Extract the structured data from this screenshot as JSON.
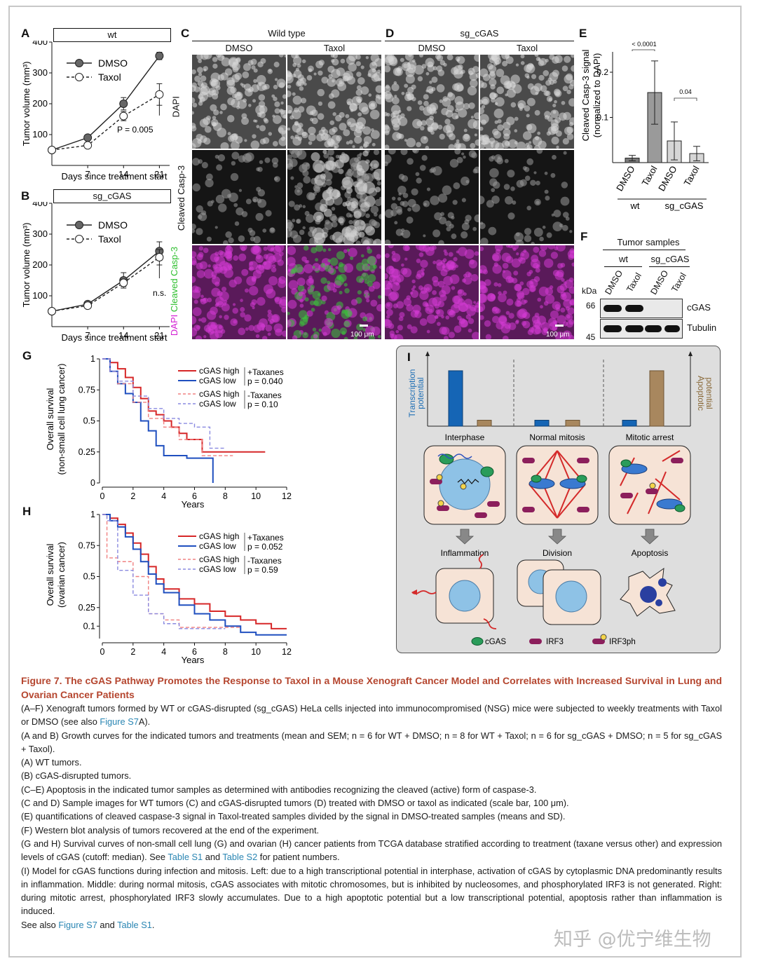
{
  "panels": {
    "A": {
      "label": "A",
      "header": "wt",
      "legend": [
        "DMSO",
        "Taxol"
      ],
      "pvalue": "P = 0.005",
      "ylabel": "Tumor volume (mm³)",
      "xlabel": "Days since treatment start"
    },
    "B": {
      "label": "B",
      "header": "sg_cGAS",
      "legend": [
        "DMSO",
        "Taxol"
      ],
      "pvalue": "n.s.",
      "ylabel": "Tumor volume (mm³)",
      "xlabel": "Days since treatment start"
    },
    "C": {
      "label": "C",
      "header": "Wild type",
      "cols": [
        "DMSO",
        "Taxol"
      ]
    },
    "D": {
      "label": "D",
      "header": "sg_cGAS",
      "cols": [
        "DMSO",
        "Taxol"
      ]
    },
    "CD_rows": {
      "dapi": "DAPI",
      "casp": "Cleaved Casp-3",
      "merge_dapi": "DAPI",
      "merge_casp": "Cleaved Casp-3",
      "scale": "100 μm"
    },
    "E": {
      "label": "E",
      "ylabel_1": "Cleaved Casp-3 signal",
      "ylabel_2": "(normalized to DAPI)",
      "p1": "< 0.0001",
      "p2": "0.04",
      "groups": [
        "wt",
        "sg_cGAS"
      ]
    },
    "F": {
      "label": "F",
      "title": "Tumor samples",
      "groups": [
        "wt",
        "sg_cGAS"
      ],
      "lanes": [
        "DMSO",
        "Taxol",
        "DMSO",
        "Taxol"
      ],
      "kda": "kDa",
      "m1": "66",
      "m2": "45",
      "bands": [
        "cGAS",
        "Tubulin"
      ]
    },
    "G": {
      "label": "G",
      "ylabel_1": "Overall survival",
      "ylabel_2": "(non-small cell lung cancer)",
      "xlabel": "Years",
      "legend": {
        "high": "cGAS high",
        "low": "cGAS low",
        "tax": "+Taxanes",
        "p_tax": "p = 0.040",
        "notax": "-Taxanes",
        "p_notax": "p = 0.10"
      }
    },
    "H": {
      "label": "H",
      "ylabel_1": "Overall survival",
      "ylabel_2": "(ovarian cancer)",
      "xlabel": "Years",
      "legend": {
        "high": "cGAS high",
        "low": "cGAS low",
        "tax": "+Taxanes",
        "p_tax": "p = 0.052",
        "notax": "-Taxanes",
        "p_notax": "p = 0.59"
      }
    },
    "I": {
      "label": "I",
      "left_axis_1": "Transcription",
      "left_axis_2": "potential",
      "right_axis_1": "Apoptotic",
      "right_axis_2": "potential",
      "phases": [
        "Interphase",
        "Normal mitosis",
        "Mitotic arrest"
      ],
      "outcomes": [
        "Inflammation",
        "Division",
        "Apoptosis"
      ],
      "legend": [
        "cGAS",
        "IRF3",
        "IRF3ph"
      ],
      "bars": [
        {
          "transcription": 0.93,
          "apoptotic": 0.1
        },
        {
          "transcription": 0.1,
          "apoptotic": 0.1
        },
        {
          "transcription": 0.1,
          "apoptotic": 0.93
        }
      ]
    }
  },
  "chart_data": [
    {
      "type": "line",
      "panel": "A",
      "title": "wt",
      "x": [
        0,
        7,
        14,
        21
      ],
      "series": [
        {
          "name": "DMSO",
          "values": [
            50,
            90,
            200,
            355
          ],
          "err": [
            4,
            8,
            20,
            12
          ]
        },
        {
          "name": "Taxol",
          "values": [
            50,
            65,
            160,
            230
          ],
          "err": [
            4,
            6,
            15,
            35
          ]
        }
      ],
      "xticks": [
        7,
        14,
        21
      ],
      "yticks": [
        100,
        200,
        300,
        400
      ],
      "xlim": [
        0,
        23
      ],
      "ylim": [
        0,
        400
      ]
    },
    {
      "type": "line",
      "panel": "B",
      "title": "sg_cGAS",
      "x": [
        0,
        7,
        14,
        21
      ],
      "series": [
        {
          "name": "DMSO",
          "values": [
            50,
            73,
            150,
            245
          ],
          "err": [
            4,
            6,
            25,
            30
          ]
        },
        {
          "name": "Taxol",
          "values": [
            50,
            68,
            142,
            225
          ],
          "err": [
            4,
            6,
            12,
            25
          ]
        }
      ],
      "xticks": [
        7,
        14,
        21
      ],
      "yticks": [
        100,
        200,
        300,
        400
      ],
      "xlim": [
        0,
        23
      ],
      "ylim": [
        0,
        400
      ]
    },
    {
      "type": "bar",
      "panel": "E",
      "categories": [
        "DMSO",
        "Taxol",
        "DMSO",
        "Taxol"
      ],
      "values": [
        0.01,
        0.155,
        0.048,
        0.02
      ],
      "err": [
        0.006,
        0.07,
        0.042,
        0.016
      ],
      "yticks": [
        0.1,
        0.2
      ],
      "ylim": [
        0,
        0.245
      ]
    },
    {
      "type": "line",
      "panel": "G",
      "xticks": [
        0,
        2,
        4,
        6,
        8,
        10,
        12
      ],
      "yticks": [
        0,
        0.25,
        0.5,
        0.75,
        1
      ],
      "xlim": [
        0,
        12
      ],
      "ylim": [
        0,
        1
      ],
      "series": [
        {
          "name": "cGAS high +Taxanes",
          "color": "#d62728",
          "dash": false,
          "x": [
            0,
            0.5,
            1,
            1.5,
            2,
            2.5,
            3,
            3.5,
            4,
            4.5,
            5,
            5.5,
            6.5,
            10.6
          ],
          "y": [
            1,
            0.97,
            0.92,
            0.85,
            0.77,
            0.68,
            0.58,
            0.55,
            0.5,
            0.45,
            0.4,
            0.35,
            0.25,
            0.25
          ]
        },
        {
          "name": "cGAS low +Taxanes",
          "color": "#1f4fbf",
          "dash": false,
          "x": [
            0,
            0.5,
            1,
            1.5,
            2,
            2.5,
            3,
            3.5,
            4,
            5,
            5.5,
            7.2
          ],
          "y": [
            1,
            0.9,
            0.8,
            0.72,
            0.65,
            0.5,
            0.42,
            0.3,
            0.22,
            0.22,
            0.2,
            0
          ]
        },
        {
          "name": "cGAS high -Taxanes",
          "color": "#f08080",
          "dash": true,
          "x": [
            0,
            0.5,
            1,
            2,
            3,
            4,
            5,
            6.5,
            8.5
          ],
          "y": [
            1,
            0.9,
            0.8,
            0.65,
            0.52,
            0.45,
            0.35,
            0.22,
            0.22
          ]
        },
        {
          "name": "cGAS low -Taxanes",
          "color": "#8a8ae0",
          "dash": true,
          "x": [
            0,
            0.5,
            1,
            2,
            3,
            4,
            5,
            6,
            7,
            8
          ],
          "y": [
            1,
            0.9,
            0.82,
            0.7,
            0.6,
            0.52,
            0.48,
            0.45,
            0.28,
            0.28
          ]
        }
      ]
    },
    {
      "type": "line",
      "panel": "H",
      "xticks": [
        0,
        2,
        4,
        6,
        8,
        10,
        12
      ],
      "yticks": [
        0.1,
        0.25,
        0.5,
        0.75,
        1
      ],
      "xlim": [
        0,
        12
      ],
      "ylim": [
        0,
        1
      ],
      "series": [
        {
          "name": "cGAS high +Taxanes",
          "color": "#d62728",
          "dash": false,
          "x": [
            0,
            0.5,
            1,
            1.5,
            2,
            2.5,
            3,
            3.5,
            4,
            5,
            6,
            7,
            8,
            9,
            10,
            11,
            12
          ],
          "y": [
            1,
            0.97,
            0.92,
            0.85,
            0.77,
            0.68,
            0.58,
            0.48,
            0.4,
            0.32,
            0.28,
            0.22,
            0.18,
            0.15,
            0.12,
            0.08,
            0.08
          ]
        },
        {
          "name": "cGAS low +Taxanes",
          "color": "#1f4fbf",
          "dash": false,
          "x": [
            0,
            0.5,
            1,
            1.5,
            2,
            2.5,
            3,
            3.5,
            4,
            5,
            6,
            7,
            8,
            9,
            10,
            12
          ],
          "y": [
            1,
            0.95,
            0.9,
            0.82,
            0.72,
            0.62,
            0.52,
            0.44,
            0.37,
            0.27,
            0.2,
            0.15,
            0.1,
            0.05,
            0.03,
            0.03
          ]
        },
        {
          "name": "cGAS high -Taxanes",
          "color": "#f08080",
          "dash": true,
          "x": [
            0,
            0.3,
            1,
            2,
            3,
            4,
            5,
            6,
            7,
            9
          ],
          "y": [
            1,
            0.65,
            0.62,
            0.5,
            0.2,
            0.15,
            0.09,
            0.09,
            0.09,
            0.09
          ]
        },
        {
          "name": "cGAS low -Taxanes",
          "color": "#8a8ae0",
          "dash": true,
          "x": [
            0,
            0.3,
            1,
            2,
            3,
            4,
            5,
            6,
            7,
            8
          ],
          "y": [
            1,
            0.95,
            0.55,
            0.35,
            0.2,
            0.12,
            0.08,
            0.08,
            0.08,
            0.08
          ]
        }
      ]
    }
  ],
  "caption": {
    "title": "Figure 7.  The cGAS Pathway Promotes the Response to Taxol in a Mouse Xenograft Cancer Model and Correlates with Increased Survival in Lung and Ovarian Cancer Patients",
    "p1a": "(A–F) Xenograft tumors formed by WT or cGAS-disrupted (sg_cGAS) HeLa cells injected into immunocompromised (NSG) mice were subjected to weekly treatments with Taxol or DMSO (see also ",
    "p1link": "Figure S7",
    "p1b": "A).",
    "p2": "(A and B) Growth curves for the indicated tumors and treatments (mean and SEM; n = 6 for WT + DMSO; n = 8 for WT + Taxol; n = 6 for sg_cGAS + DMSO; n = 5 for sg_cGAS + Taxol).",
    "p3": "(A) WT tumors.",
    "p4": "(B) cGAS-disrupted tumors.",
    "p5": "(C–E) Apoptosis in the indicated tumor samples as determined with antibodies recognizing the cleaved (active) form of caspase-3.",
    "p6": "(C and D) Sample images for WT tumors (C) and cGAS-disrupted tumors (D) treated with DMSO or taxol as indicated (scale bar, 100 μm).",
    "p7": "(E) quantifications of cleaved caspase-3 signal in Taxol-treated samples divided by the signal in DMSO-treated samples (means and SD).",
    "p8": "(F) Western blot analysis of tumors recovered at the end of the experiment.",
    "p9a": "(G and H) Survival curves of non-small cell lung (G) and ovarian (H) cancer patients from TCGA database stratified according to treatment (taxane versus other) and expression levels of cGAS (cutoff: median). See ",
    "p9link1": "Table S1",
    "p9mid": " and ",
    "p9link2": "Table S2",
    "p9b": " for patient numbers.",
    "p10": "(I) Model for cGAS functions during infection and mitosis. Left: due to a high transcriptional potential in interphase, activation of cGAS by cytoplasmic DNA predominantly results in inflammation. Middle: during normal mitosis, cGAS associates with mitotic chromosomes, but is inhibited by nucleosomes, and phosphorylated IRF3 is not generated. Right: during mitotic arrest, phosphorylated IRF3 slowly accumulates. Due to a high apoptotic potential but a low transcriptional potential, apoptosis rather than inflammation is induced.",
    "p11a": "See also ",
    "p11link1": "Figure S7",
    "p11mid": " and ",
    "p11link2": "Table S1",
    "p11b": "."
  },
  "watermark": "知乎 @优宁维生物"
}
